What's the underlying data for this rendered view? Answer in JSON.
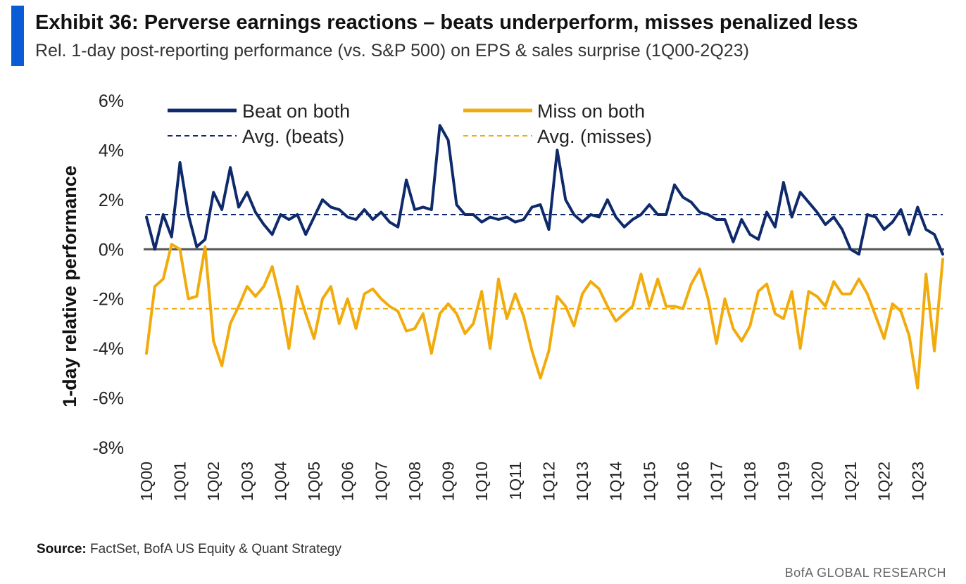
{
  "header": {
    "title": "Exhibit 36: Perverse earnings reactions – beats underperform, misses penalized less",
    "subtitle": "Rel. 1-day post-reporting performance (vs. S&P 500) on EPS & sales surprise (1Q00-2Q23)"
  },
  "footer": {
    "source_label": "Source:",
    "source_text": " FactSet, BofA US Equity & Quant Strategy",
    "brand": "BofA GLOBAL RESEARCH"
  },
  "colors": {
    "accent": "#0a5bd6",
    "beats": "#0f2a6b",
    "misses": "#f2ab0c",
    "zero_line": "#555555"
  },
  "chart_data": {
    "type": "line",
    "title": "Exhibit 36: Perverse earnings reactions – beats underperform, misses penalized less",
    "ylabel": "1-day relative performance",
    "xlabel": "",
    "ylim": [
      -8,
      6
    ],
    "y_ticks": [
      6,
      4,
      2,
      0,
      -2,
      -4,
      -6,
      -8
    ],
    "y_tick_labels": [
      "6%",
      "4%",
      "2%",
      "0%",
      "-2%",
      "-4%",
      "-6%",
      "-8%"
    ],
    "x_tick_labels": [
      "1Q00",
      "1Q01",
      "1Q02",
      "1Q03",
      "1Q04",
      "1Q05",
      "1Q06",
      "1Q07",
      "1Q08",
      "1Q09",
      "1Q10",
      "1Q11",
      "1Q12",
      "1Q13",
      "1Q14",
      "1Q15",
      "1Q16",
      "1Q17",
      "1Q18",
      "1Q19",
      "1Q20",
      "1Q21",
      "1Q22",
      "1Q23"
    ],
    "legend_position": "top",
    "series": [
      {
        "name": "Beat on both",
        "style": "solid",
        "values": [
          1.3,
          0.0,
          1.4,
          0.5,
          3.5,
          1.4,
          0.1,
          0.4,
          2.3,
          1.6,
          3.3,
          1.7,
          2.3,
          1.5,
          1.0,
          0.6,
          1.4,
          1.2,
          1.4,
          0.6,
          1.3,
          2.0,
          1.7,
          1.6,
          1.3,
          1.2,
          1.6,
          1.2,
          1.5,
          1.1,
          0.9,
          2.8,
          1.6,
          1.7,
          1.6,
          5.0,
          4.4,
          1.8,
          1.4,
          1.4,
          1.1,
          1.3,
          1.2,
          1.3,
          1.1,
          1.2,
          1.7,
          1.8,
          0.8,
          4.0,
          2.0,
          1.4,
          1.1,
          1.4,
          1.3,
          2.0,
          1.3,
          0.9,
          1.2,
          1.4,
          1.8,
          1.4,
          1.4,
          2.6,
          2.1,
          1.9,
          1.5,
          1.4,
          1.2,
          1.2,
          0.3,
          1.2,
          0.6,
          0.4,
          1.5,
          0.9,
          2.7,
          1.3,
          2.3,
          1.9,
          1.5,
          1.0,
          1.3,
          0.8,
          0.0,
          -0.2,
          1.4,
          1.3,
          0.8,
          1.1,
          1.6,
          0.6,
          1.7,
          0.8,
          0.6,
          -0.2
        ]
      },
      {
        "name": "Miss on both",
        "style": "solid",
        "values": [
          -4.2,
          -1.5,
          -1.2,
          0.2,
          0.0,
          -2.0,
          -1.9,
          0.1,
          -3.7,
          -4.7,
          -3.0,
          -2.3,
          -1.5,
          -1.9,
          -1.5,
          -0.7,
          -2.1,
          -4.0,
          -1.5,
          -2.6,
          -3.6,
          -2.0,
          -1.5,
          -3.0,
          -2.0,
          -3.2,
          -1.8,
          -1.6,
          -2.0,
          -2.3,
          -2.5,
          -3.3,
          -3.2,
          -2.6,
          -4.2,
          -2.6,
          -2.2,
          -2.6,
          -3.4,
          -3.0,
          -1.7,
          -4.0,
          -1.2,
          -2.8,
          -1.8,
          -2.7,
          -4.1,
          -5.2,
          -4.1,
          -1.9,
          -2.3,
          -3.1,
          -1.8,
          -1.3,
          -1.6,
          -2.3,
          -2.9,
          -2.6,
          -2.3,
          -1.0,
          -2.3,
          -1.2,
          -2.3,
          -2.3,
          -2.4,
          -1.4,
          -0.8,
          -2.0,
          -3.8,
          -2.0,
          -3.2,
          -3.7,
          -3.1,
          -1.7,
          -1.4,
          -2.6,
          -2.8,
          -1.7,
          -4.0,
          -1.7,
          -1.9,
          -2.3,
          -1.3,
          -1.8,
          -1.8,
          -1.2,
          -1.8,
          -2.7,
          -3.6,
          -2.2,
          -2.5,
          -3.5,
          -5.6,
          -1.0,
          -4.1,
          -0.4
        ]
      },
      {
        "name": "Avg. (beats)",
        "style": "dashed",
        "value": 1.4
      },
      {
        "name": "Avg. (misses)",
        "style": "dashed",
        "value": -2.4
      }
    ]
  }
}
